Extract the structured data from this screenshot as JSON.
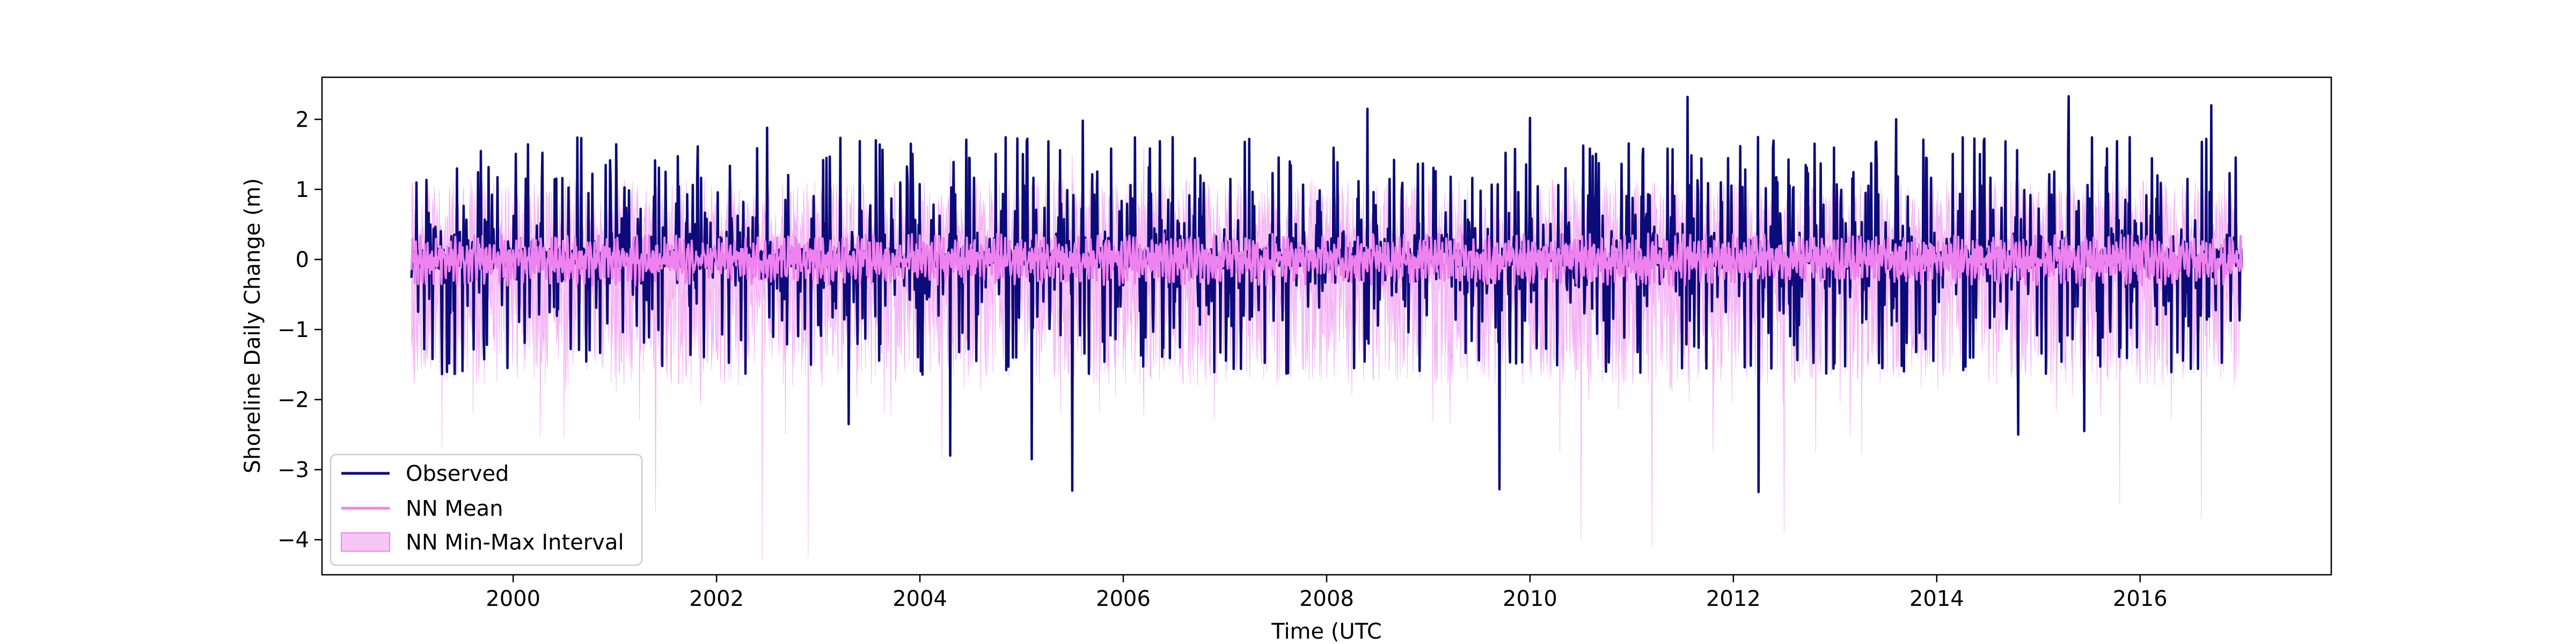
{
  "chart_data": {
    "type": "line",
    "title": "",
    "xlabel": "Time (UTC",
    "ylabel": "Shoreline Daily Change (m)",
    "xlim": [
      1998.12,
      2017.88
    ],
    "ylim": [
      -4.5,
      2.6
    ],
    "x_ticks": [
      2000,
      2002,
      2004,
      2006,
      2008,
      2010,
      2012,
      2014,
      2016
    ],
    "x_tick_labels": [
      "2000",
      "2002",
      "2004",
      "2006",
      "2008",
      "2010",
      "2012",
      "2014",
      "2016"
    ],
    "y_ticks": [
      -4,
      -3,
      -2,
      -1,
      0,
      1,
      2
    ],
    "y_tick_labels": [
      "−4",
      "−3",
      "−2",
      "−1",
      "0",
      "1",
      "2"
    ],
    "grid": false,
    "legend": {
      "position": "lower-left",
      "entries": [
        "Observed",
        "NN Mean",
        "NN Min-Max Interval"
      ]
    },
    "colors": {
      "observed": "#0b0b7a",
      "nn_mean": "#ee82ee",
      "interval_fill": "#f6c6f6",
      "interval_edge": "#ee82ee"
    },
    "series": [
      {
        "name": "Observed",
        "kind": "line",
        "x_start": 1999.0,
        "x_end": 2017.0,
        "typical_range": [
          -1.0,
          1.0
        ],
        "notable_peaks": [
          {
            "x": 2004.3,
            "y": 2.28
          },
          {
            "x": 2011.55,
            "y": 2.32
          },
          {
            "x": 2015.3,
            "y": 2.33
          },
          {
            "x": 2016.7,
            "y": 2.2
          },
          {
            "x": 2003.3,
            "y": 2.05
          },
          {
            "x": 2005.6,
            "y": 1.98
          },
          {
            "x": 2008.4,
            "y": 2.15
          },
          {
            "x": 2002.5,
            "y": 1.88
          },
          {
            "x": 2010.0,
            "y": 2.02
          },
          {
            "x": 2013.6,
            "y": 2.0
          }
        ],
        "notable_troughs": [
          {
            "x": 2005.5,
            "y": -3.3
          },
          {
            "x": 2009.7,
            "y": -3.28
          },
          {
            "x": 2012.25,
            "y": -3.32
          },
          {
            "x": 2004.3,
            "y": -2.8
          },
          {
            "x": 2005.1,
            "y": -2.85
          },
          {
            "x": 2014.8,
            "y": -2.5
          },
          {
            "x": 2015.45,
            "y": -2.45
          },
          {
            "x": 2003.3,
            "y": -2.35
          }
        ]
      },
      {
        "name": "NN Mean",
        "kind": "line",
        "x_start": 1999.0,
        "x_end": 2017.0,
        "typical_range": [
          -0.25,
          0.25
        ]
      },
      {
        "name": "NN Min-Max Interval",
        "kind": "band",
        "x_start": 1999.0,
        "x_end": 2017.0,
        "typical_upper": 1.0,
        "typical_lower": -1.5,
        "notable_lows": [
          {
            "x": 2002.45,
            "y": -4.3
          },
          {
            "x": 2002.9,
            "y": -4.25
          },
          {
            "x": 2011.2,
            "y": -4.1
          },
          {
            "x": 2010.5,
            "y": -4.0
          },
          {
            "x": 2012.5,
            "y": -3.9
          },
          {
            "x": 2016.6,
            "y": -3.7
          },
          {
            "x": 2001.4,
            "y": -3.6
          },
          {
            "x": 2015.8,
            "y": -3.5
          }
        ],
        "notable_highs": [
          {
            "x": 2006.2,
            "y": 1.6
          },
          {
            "x": 2005.5,
            "y": 1.5
          },
          {
            "x": 2004.3,
            "y": 1.45
          }
        ]
      }
    ]
  }
}
